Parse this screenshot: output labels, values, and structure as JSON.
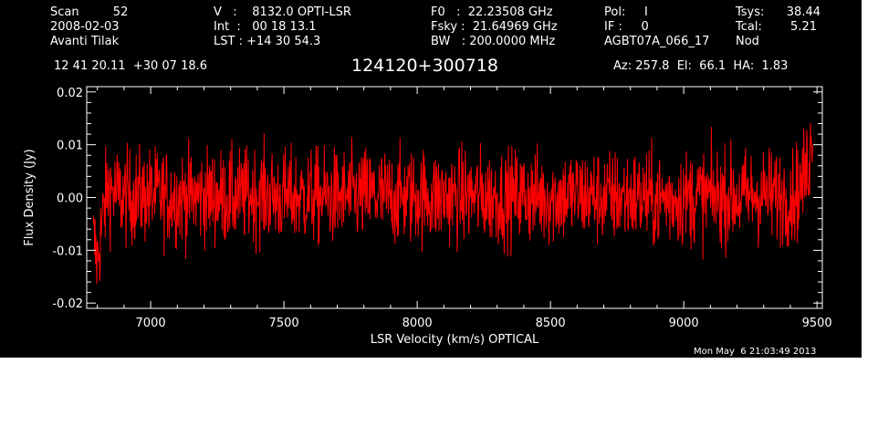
{
  "header": {
    "col1": {
      "line1": "Scan         52",
      "line2": "2008-02-03",
      "line3": "Avanti Tilak"
    },
    "col2": {
      "line1": "V   :    8132.0 OPTI-LSR",
      "line2": "Int  :   00 18 13.1",
      "line3": "LST : +14 30 54.3"
    },
    "col3": {
      "line1": "F0   :  22.23508 GHz",
      "line2": "Fsky :  21.64969 GHz",
      "line3": "BW   : 200.0000 MHz"
    },
    "col4": {
      "line1": "Pol:     I",
      "line2": "IF :     0",
      "line3": "AGBT07A_066_17"
    },
    "col5": {
      "line1": "Tsys:",
      "line2": "Tcal:",
      "line3": "Nod",
      "tsys_value": "38.44",
      "tcal_value": "5.21"
    },
    "coords": "12 41 20.11  +30 07 18.6",
    "source": "124120+300718",
    "pointing": "Az: 257.8  El:  66.1  HA:  1.83",
    "timestamp": "Mon May  6 21:03:49 2013"
  },
  "chart_data": {
    "type": "line",
    "xlabel": "LSR Velocity (km/s) OPTICAL",
    "ylabel": "Flux Density (Jy)",
    "xlim": [
      6760,
      9520
    ],
    "ylim": [
      -0.021,
      0.021
    ],
    "xticks": [
      7000,
      7500,
      8000,
      8500,
      9000,
      9500
    ],
    "xtick_labels": [
      "7000",
      "7500",
      "8000",
      "8500",
      "9000",
      "9500"
    ],
    "yticks": [
      -0.02,
      -0.01,
      0.0,
      0.01,
      0.02
    ],
    "ytick_labels": [
      "-0.02",
      "-0.01",
      "0.00",
      "0.01",
      "0.02"
    ],
    "series": [
      {
        "color": "#ff0000",
        "x": [
          6785,
          6800,
          6820,
          6840,
          6860,
          6900,
          7000,
          7100,
          7200,
          7300,
          7400,
          7500,
          7600,
          7700,
          7800,
          7900,
          8000,
          8100,
          8200,
          8300,
          8400,
          8500,
          8600,
          8700,
          8800,
          8900,
          9000,
          9100,
          9200,
          9300,
          9400,
          9440,
          9460,
          9475,
          9485
        ],
        "y": [
          -0.008,
          -0.012,
          -0.004,
          0.002,
          0.001,
          0.0,
          0.0005,
          0.0,
          0.0003,
          0.0,
          0.0007,
          0.0,
          0.0002,
          0.0,
          0.0005,
          0.0,
          0.0003,
          0.0,
          0.0004,
          0.0,
          0.0003,
          0.0,
          0.0005,
          0.0,
          0.0002,
          -0.0005,
          0.0,
          0.0002,
          0.0,
          0.0006,
          0.0,
          0.002,
          0.005,
          0.009,
          0.013
        ]
      }
    ],
    "noise_rms": 0.0045,
    "grid": false
  }
}
